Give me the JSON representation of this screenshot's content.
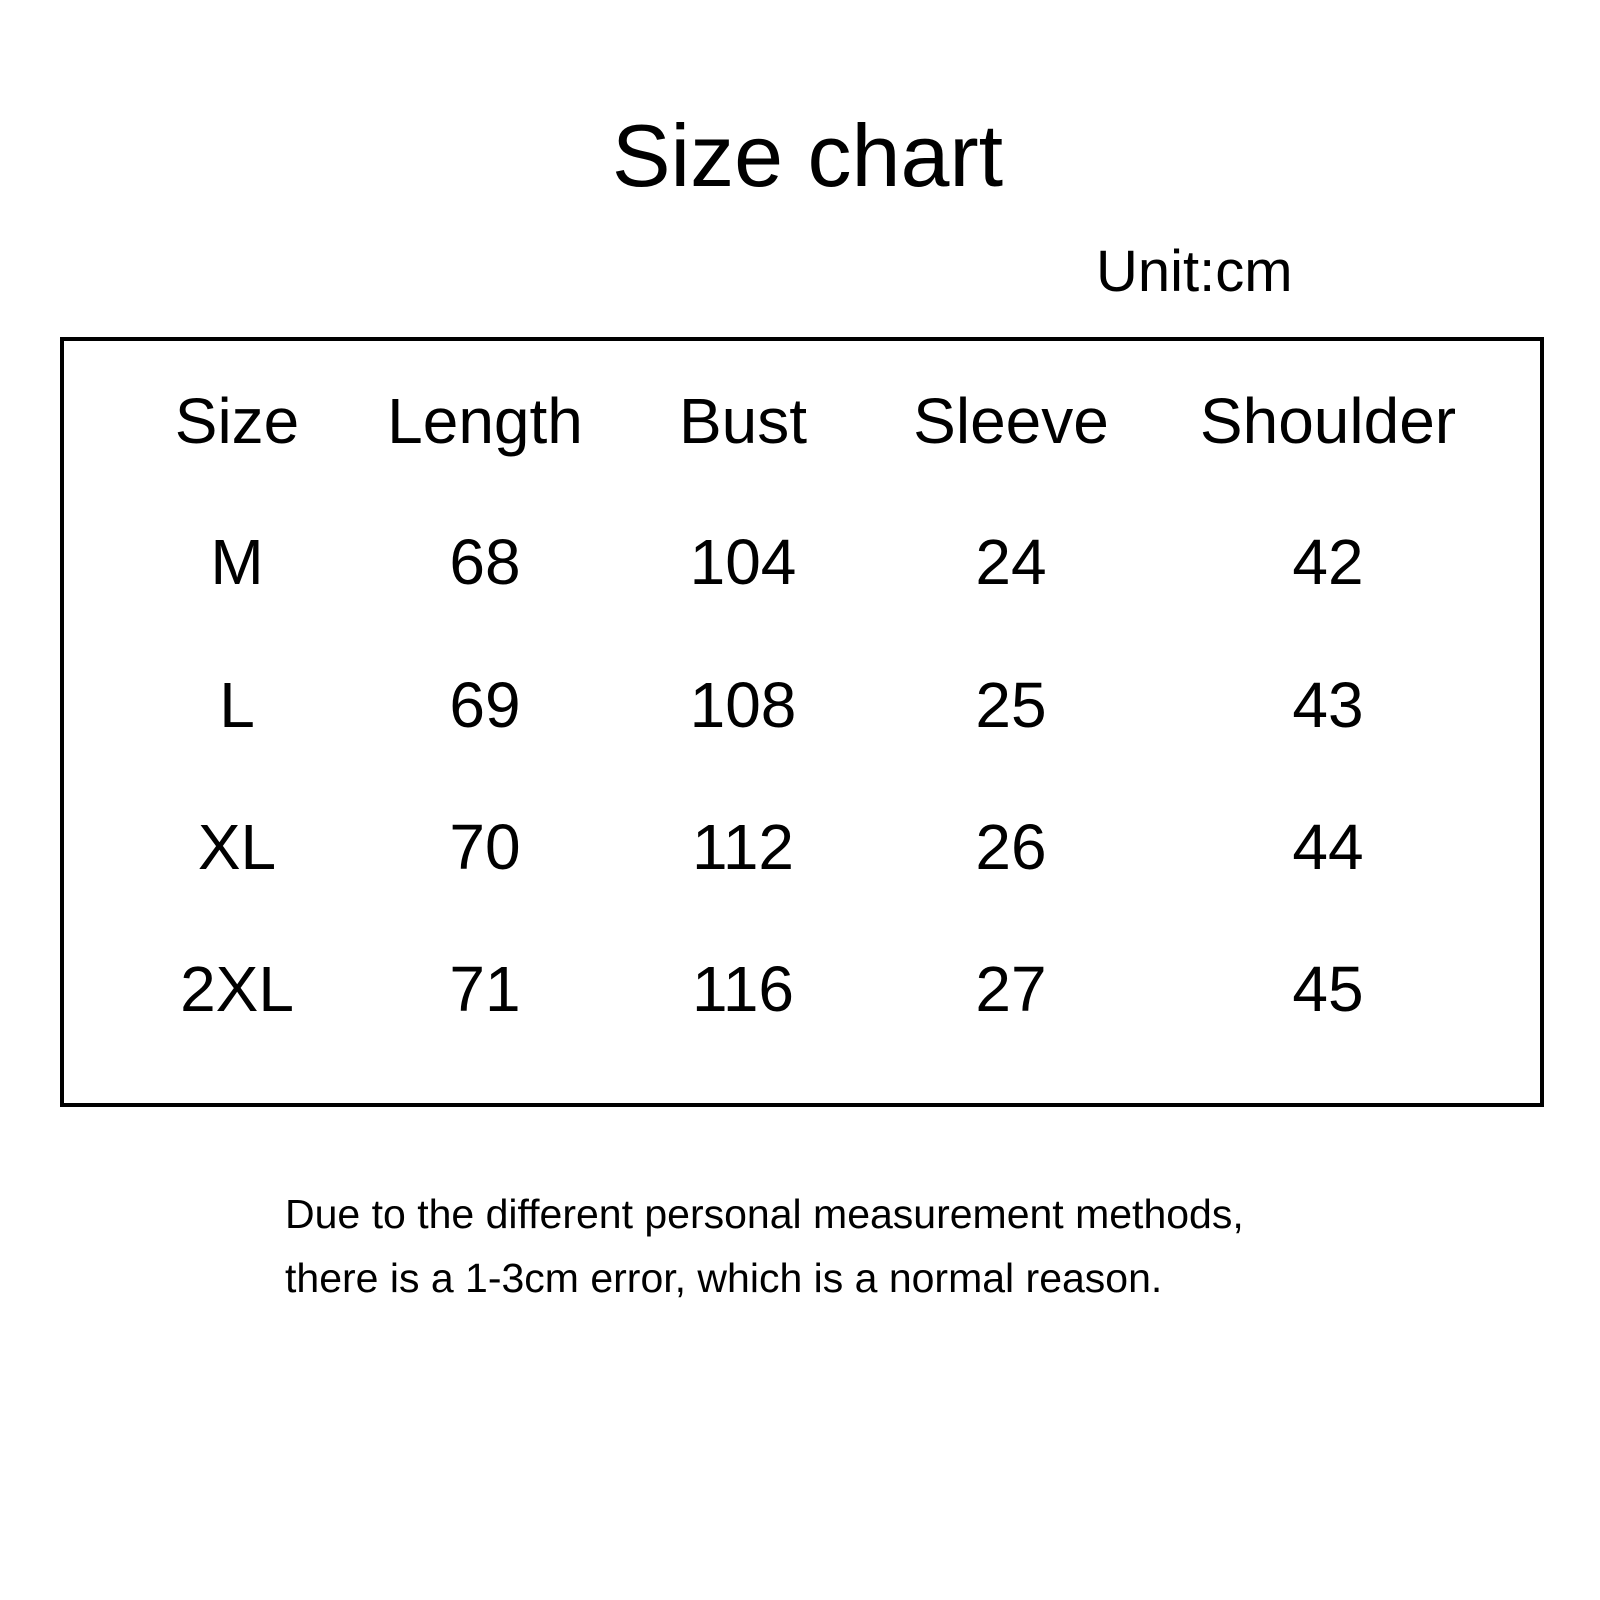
{
  "title": "Size chart",
  "unit": "Unit:cm",
  "table": {
    "headers": [
      "Size",
      "Length",
      "Bust",
      "Sleeve",
      "Shoulder"
    ],
    "rows": [
      [
        "M",
        "68",
        "104",
        "24",
        "42"
      ],
      [
        "L",
        "69",
        "108",
        "25",
        "43"
      ],
      [
        "XL",
        "70",
        "112",
        "26",
        "44"
      ],
      [
        "2XL",
        "71",
        "116",
        "27",
        "45"
      ]
    ]
  },
  "note": {
    "line1": "Due to the different personal measurement methods,",
    "line2": "there is a 1-3cm error, which is a normal reason."
  }
}
